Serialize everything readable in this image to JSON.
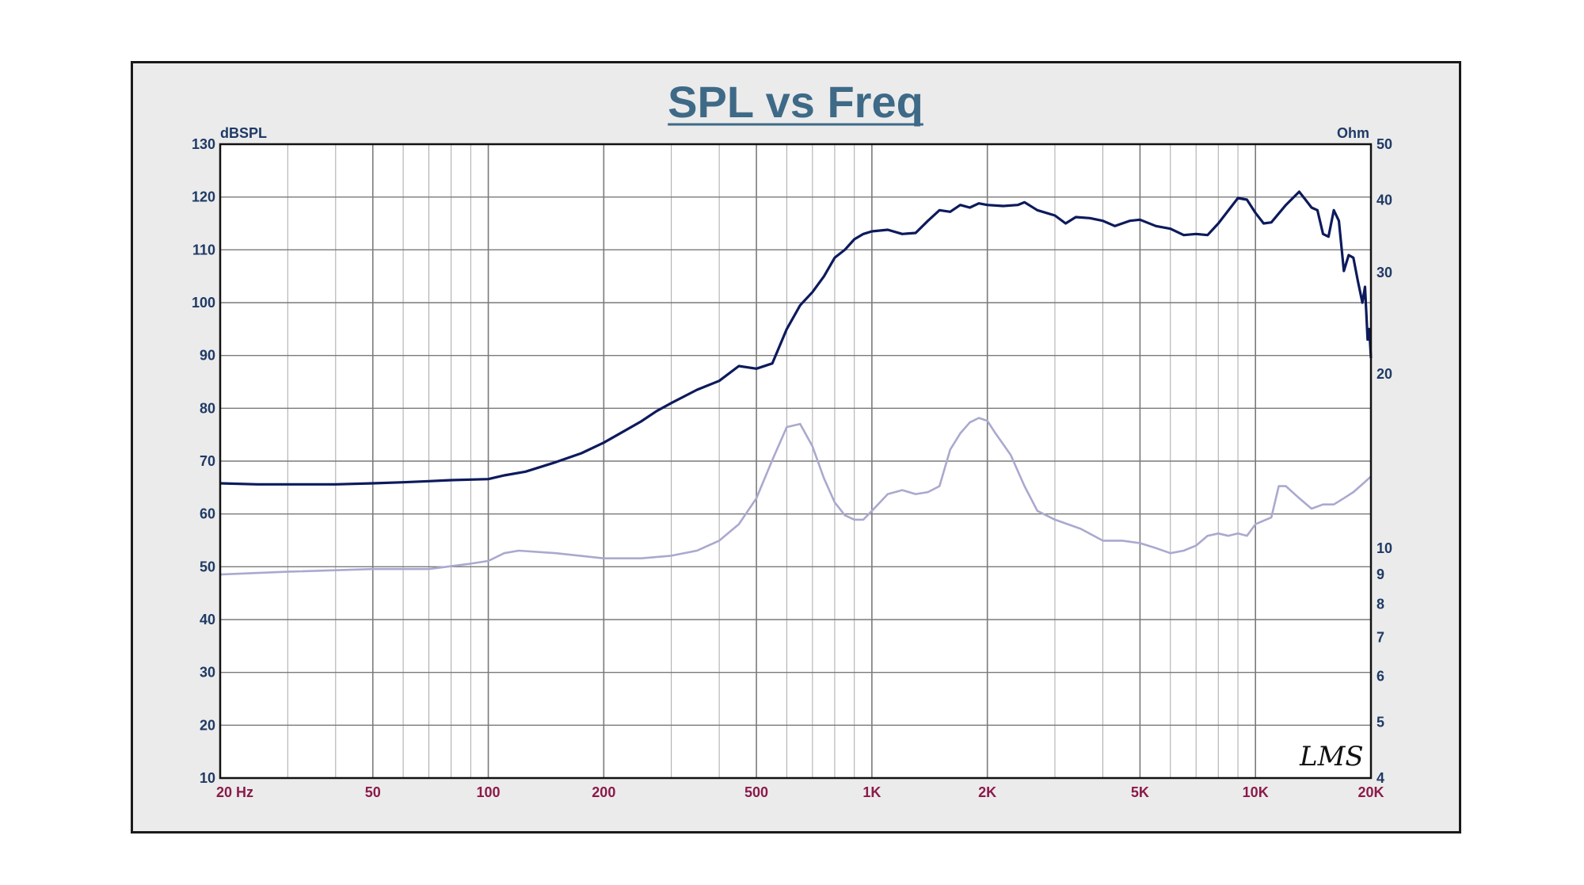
{
  "chart_data": {
    "type": "line",
    "title": "SPL vs Freq",
    "left_axis_label": "dBSPL",
    "right_axis_label": "Ohm",
    "x_scale": "log",
    "xlim": [
      20,
      20000
    ],
    "x_tick_values": [
      20,
      50,
      100,
      200,
      500,
      1000,
      2000,
      5000,
      10000,
      20000
    ],
    "x_tick_labels": [
      "20  Hz",
      "50",
      "100",
      "200",
      "500",
      "1K",
      "2K",
      "5K",
      "10K",
      "20K"
    ],
    "ylim_left": [
      10,
      130
    ],
    "y_left_ticks": [
      10,
      20,
      30,
      40,
      50,
      60,
      70,
      80,
      90,
      100,
      110,
      120,
      130
    ],
    "y_right_scale": "log",
    "ylim_right": [
      4,
      50
    ],
    "y_right_ticks": [
      4,
      5,
      6,
      7,
      8,
      9,
      10,
      20,
      30,
      40,
      50
    ],
    "grid": true,
    "logo_text": "LMS",
    "series": [
      {
        "axis": "left",
        "color": "#0d1a5c",
        "points": [
          [
            20,
            65.8
          ],
          [
            25,
            65.6
          ],
          [
            30,
            65.6
          ],
          [
            40,
            65.6
          ],
          [
            50,
            65.8
          ],
          [
            60,
            66.0
          ],
          [
            70,
            66.2
          ],
          [
            80,
            66.4
          ],
          [
            90,
            66.5
          ],
          [
            100,
            66.6
          ],
          [
            110,
            67.3
          ],
          [
            125,
            68.0
          ],
          [
            150,
            69.8
          ],
          [
            175,
            71.5
          ],
          [
            200,
            73.5
          ],
          [
            220,
            75.2
          ],
          [
            250,
            77.5
          ],
          [
            275,
            79.5
          ],
          [
            300,
            81.0
          ],
          [
            350,
            83.5
          ],
          [
            400,
            85.2
          ],
          [
            450,
            88.0
          ],
          [
            500,
            87.5
          ],
          [
            550,
            88.5
          ],
          [
            600,
            95.0
          ],
          [
            650,
            99.5
          ],
          [
            700,
            102.0
          ],
          [
            750,
            105.0
          ],
          [
            800,
            108.5
          ],
          [
            850,
            110.0
          ],
          [
            900,
            112.0
          ],
          [
            950,
            113.0
          ],
          [
            1000,
            113.5
          ],
          [
            1100,
            113.8
          ],
          [
            1200,
            113.0
          ],
          [
            1300,
            113.2
          ],
          [
            1400,
            115.5
          ],
          [
            1500,
            117.5
          ],
          [
            1600,
            117.2
          ],
          [
            1700,
            118.5
          ],
          [
            1800,
            118.0
          ],
          [
            1900,
            118.8
          ],
          [
            2000,
            118.5
          ],
          [
            2200,
            118.3
          ],
          [
            2400,
            118.5
          ],
          [
            2500,
            119.0
          ],
          [
            2700,
            117.5
          ],
          [
            3000,
            116.5
          ],
          [
            3200,
            115.0
          ],
          [
            3400,
            116.2
          ],
          [
            3700,
            116.0
          ],
          [
            4000,
            115.5
          ],
          [
            4300,
            114.5
          ],
          [
            4700,
            115.5
          ],
          [
            5000,
            115.7
          ],
          [
            5500,
            114.5
          ],
          [
            6000,
            114.0
          ],
          [
            6500,
            112.8
          ],
          [
            7000,
            113.0
          ],
          [
            7500,
            112.8
          ],
          [
            8000,
            115.0
          ],
          [
            9000,
            119.8
          ],
          [
            9500,
            119.5
          ],
          [
            10000,
            117.0
          ],
          [
            10500,
            115.0
          ],
          [
            11000,
            115.2
          ],
          [
            12000,
            118.5
          ],
          [
            13000,
            121.0
          ],
          [
            13500,
            119.5
          ],
          [
            14000,
            118.0
          ],
          [
            14500,
            117.5
          ],
          [
            15000,
            113.0
          ],
          [
            15500,
            112.5
          ],
          [
            16000,
            117.5
          ],
          [
            16500,
            115.5
          ],
          [
            17000,
            106.0
          ],
          [
            17500,
            109.0
          ],
          [
            18000,
            108.5
          ],
          [
            18500,
            104.0
          ],
          [
            19000,
            100.0
          ],
          [
            19300,
            103.0
          ],
          [
            19600,
            93.0
          ],
          [
            19800,
            95.0
          ],
          [
            20000,
            89.5
          ]
        ]
      },
      {
        "axis": "right",
        "color": "#a9a9cf",
        "points": [
          [
            20,
            9.0
          ],
          [
            30,
            9.1
          ],
          [
            50,
            9.2
          ],
          [
            70,
            9.2
          ],
          [
            90,
            9.4
          ],
          [
            100,
            9.5
          ],
          [
            110,
            9.8
          ],
          [
            120,
            9.9
          ],
          [
            150,
            9.8
          ],
          [
            200,
            9.6
          ],
          [
            250,
            9.6
          ],
          [
            300,
            9.7
          ],
          [
            350,
            9.9
          ],
          [
            400,
            10.3
          ],
          [
            450,
            11.0
          ],
          [
            500,
            12.2
          ],
          [
            550,
            14.2
          ],
          [
            600,
            16.2
          ],
          [
            650,
            16.4
          ],
          [
            700,
            15.0
          ],
          [
            750,
            13.2
          ],
          [
            800,
            12.0
          ],
          [
            850,
            11.4
          ],
          [
            900,
            11.2
          ],
          [
            950,
            11.2
          ],
          [
            1000,
            11.6
          ],
          [
            1100,
            12.4
          ],
          [
            1200,
            12.6
          ],
          [
            1300,
            12.4
          ],
          [
            1400,
            12.5
          ],
          [
            1500,
            12.8
          ],
          [
            1600,
            14.8
          ],
          [
            1700,
            15.8
          ],
          [
            1800,
            16.5
          ],
          [
            1900,
            16.8
          ],
          [
            2000,
            16.6
          ],
          [
            2100,
            15.8
          ],
          [
            2300,
            14.5
          ],
          [
            2500,
            12.8
          ],
          [
            2700,
            11.6
          ],
          [
            3000,
            11.2
          ],
          [
            3500,
            10.8
          ],
          [
            4000,
            10.3
          ],
          [
            4500,
            10.3
          ],
          [
            5000,
            10.2
          ],
          [
            5500,
            10.0
          ],
          [
            6000,
            9.8
          ],
          [
            6500,
            9.9
          ],
          [
            7000,
            10.1
          ],
          [
            7500,
            10.5
          ],
          [
            8000,
            10.6
          ],
          [
            8500,
            10.5
          ],
          [
            9000,
            10.6
          ],
          [
            9500,
            10.5
          ],
          [
            10000,
            11.0
          ],
          [
            11000,
            11.3
          ],
          [
            11500,
            12.8
          ],
          [
            12000,
            12.8
          ],
          [
            13000,
            12.2
          ],
          [
            14000,
            11.7
          ],
          [
            15000,
            11.9
          ],
          [
            16000,
            11.9
          ],
          [
            17000,
            12.2
          ],
          [
            18000,
            12.5
          ],
          [
            19000,
            12.9
          ],
          [
            20000,
            13.3
          ]
        ]
      }
    ]
  }
}
